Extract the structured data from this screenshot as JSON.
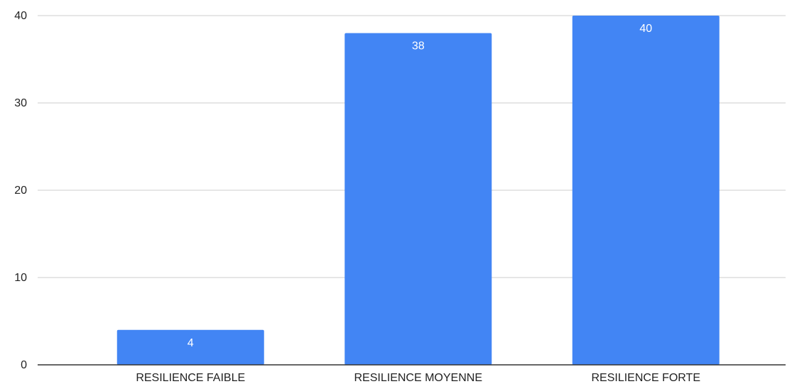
{
  "chart_data": {
    "type": "bar",
    "title": "",
    "xlabel": "",
    "ylabel": "",
    "categories": [
      "RESILIENCE FAIBLE",
      "RESILIENCE MOYENNE",
      "RESILIENCE FORTE"
    ],
    "values": [
      4,
      38,
      40
    ],
    "data_labels": [
      "4",
      "38",
      "40"
    ],
    "ylim": [
      0,
      40
    ],
    "yticks": [
      0,
      10,
      20,
      30,
      40
    ],
    "ytick_labels": [
      "0",
      "10",
      "20",
      "30",
      "40"
    ],
    "grid": true,
    "legend": "none",
    "colors": {
      "bar": "#4285F4",
      "grid": "#cccccc",
      "axis": "#333333",
      "text": "#222222",
      "data_label": "#ffffff"
    }
  }
}
